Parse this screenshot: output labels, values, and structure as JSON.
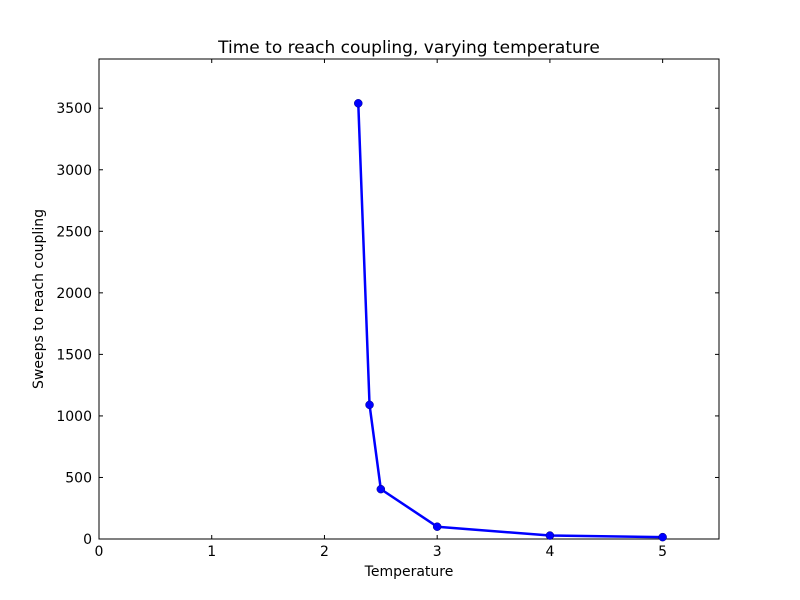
{
  "chart_data": {
    "type": "line",
    "title": "Time to reach coupling, varying temperature",
    "xlabel": "Temperature",
    "ylabel": "Sweeps to reach coupling",
    "xlim": [
      0,
      5.5
    ],
    "ylim": [
      0,
      3900
    ],
    "xticks": [
      0,
      1,
      2,
      3,
      4,
      5
    ],
    "yticks": [
      0,
      500,
      1000,
      1500,
      2000,
      2500,
      3000,
      3500
    ],
    "grid": false,
    "series": [
      {
        "color": "#0000ff",
        "marker": "circle",
        "x": [
          2.3,
          2.4,
          2.5,
          3.0,
          4.0,
          5.0
        ],
        "y": [
          3540,
          1090,
          405,
          100,
          28,
          15
        ]
      }
    ]
  }
}
